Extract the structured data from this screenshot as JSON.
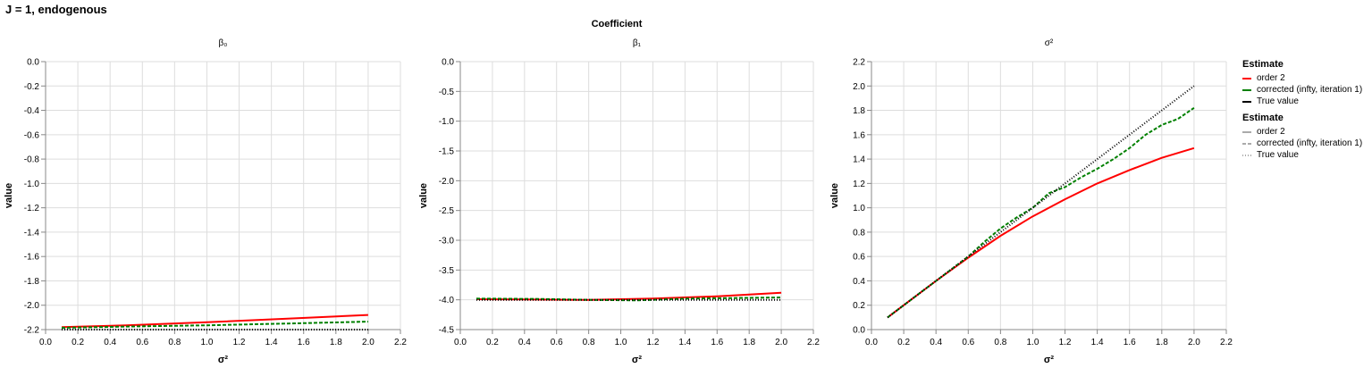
{
  "header": {
    "title": "J = 1, endogenous",
    "facet_label": "Coefficient"
  },
  "legend": {
    "color_title": "Estimate",
    "dash_title": "Estimate",
    "entries": [
      {
        "label": "order 2",
        "color": "#ff0000",
        "dash": "solid"
      },
      {
        "label": "corrected (infty, iteration 1)",
        "color": "#008000",
        "dash": "dashed"
      },
      {
        "label": "True value",
        "color": "#000000",
        "dash": "dotted"
      }
    ]
  },
  "chart_data": [
    {
      "type": "line",
      "title": "β₀",
      "xlabel": "σ²",
      "ylabel": "value",
      "xlim": [
        0,
        2.2
      ],
      "ylim": [
        -2.2,
        0
      ],
      "x_ticks": [
        "0.0",
        "0.2",
        "0.4",
        "0.6",
        "0.8",
        "1.0",
        "1.2",
        "1.4",
        "1.6",
        "1.8",
        "2.0",
        "2.2"
      ],
      "y_ticks": [
        "0.0",
        "-0.2",
        "-0.4",
        "-0.6",
        "-0.8",
        "-1.0",
        "-1.2",
        "-1.4",
        "-1.6",
        "-1.8",
        "-2.0",
        "-2.2"
      ],
      "grid": true,
      "series": [
        {
          "name": "order 2",
          "x": [
            0.1,
            0.5,
            1.0,
            1.5,
            2.0
          ],
          "y": [
            -2.18,
            -2.165,
            -2.14,
            -2.11,
            -2.08
          ]
        },
        {
          "name": "corrected (infty, iteration 1)",
          "x": [
            0.1,
            0.5,
            1.0,
            1.5,
            2.0
          ],
          "y": [
            -2.185,
            -2.175,
            -2.165,
            -2.15,
            -2.135
          ]
        },
        {
          "name": "True value",
          "x": [
            0.1,
            2.0
          ],
          "y": [
            -2.2,
            -2.2
          ]
        }
      ]
    },
    {
      "type": "line",
      "title": "β₁",
      "xlabel": "σ²",
      "ylabel": "value",
      "xlim": [
        0,
        2.2
      ],
      "ylim": [
        -4.5,
        0
      ],
      "x_ticks": [
        "0.0",
        "0.2",
        "0.4",
        "0.6",
        "0.8",
        "1.0",
        "1.2",
        "1.4",
        "1.6",
        "1.8",
        "2.0",
        "2.2"
      ],
      "y_ticks": [
        "0.0",
        "-0.5",
        "-1.0",
        "-1.5",
        "-2.0",
        "-2.5",
        "-3.0",
        "-3.5",
        "-4.0",
        "-4.5"
      ],
      "grid": true,
      "series": [
        {
          "name": "order 2",
          "x": [
            0.1,
            0.4,
            0.8,
            1.2,
            1.6,
            2.0
          ],
          "y": [
            -3.99,
            -3.995,
            -4.0,
            -3.98,
            -3.94,
            -3.88
          ]
        },
        {
          "name": "corrected (infty, iteration 1)",
          "x": [
            0.1,
            0.5,
            0.8,
            1.1,
            1.4,
            1.7,
            2.0
          ],
          "y": [
            -3.98,
            -3.985,
            -4.0,
            -4.01,
            -3.98,
            -3.97,
            -3.96
          ]
        },
        {
          "name": "True value",
          "x": [
            0.1,
            2.0
          ],
          "y": [
            -4.0,
            -4.0
          ]
        }
      ]
    },
    {
      "type": "line",
      "title": "σ²",
      "xlabel": "σ²",
      "ylabel": "value",
      "xlim": [
        0,
        2.2
      ],
      "ylim": [
        0,
        2.2
      ],
      "x_ticks": [
        "0.0",
        "0.2",
        "0.4",
        "0.6",
        "0.8",
        "1.0",
        "1.2",
        "1.4",
        "1.6",
        "1.8",
        "2.0",
        "2.2"
      ],
      "y_ticks": [
        "0.0",
        "0.2",
        "0.4",
        "0.6",
        "0.8",
        "1.0",
        "1.2",
        "1.4",
        "1.6",
        "1.8",
        "2.0",
        "2.2"
      ],
      "grid": true,
      "series": [
        {
          "name": "order 2",
          "x": [
            0.1,
            0.2,
            0.4,
            0.6,
            0.8,
            1.0,
            1.2,
            1.4,
            1.6,
            1.8,
            2.0
          ],
          "y": [
            0.1,
            0.2,
            0.4,
            0.59,
            0.77,
            0.93,
            1.07,
            1.2,
            1.31,
            1.41,
            1.49
          ]
        },
        {
          "name": "corrected (infty, iteration 1)",
          "x": [
            0.1,
            0.2,
            0.4,
            0.6,
            0.7,
            0.8,
            0.9,
            1.0,
            1.1,
            1.2,
            1.3,
            1.4,
            1.5,
            1.6,
            1.7,
            1.8,
            1.9,
            2.0
          ],
          "y": [
            0.1,
            0.2,
            0.4,
            0.6,
            0.72,
            0.83,
            0.92,
            1.0,
            1.12,
            1.17,
            1.25,
            1.32,
            1.4,
            1.49,
            1.6,
            1.68,
            1.73,
            1.82
          ]
        },
        {
          "name": "True value",
          "x": [
            0.1,
            2.0
          ],
          "y": [
            0.1,
            2.0
          ]
        }
      ]
    }
  ]
}
